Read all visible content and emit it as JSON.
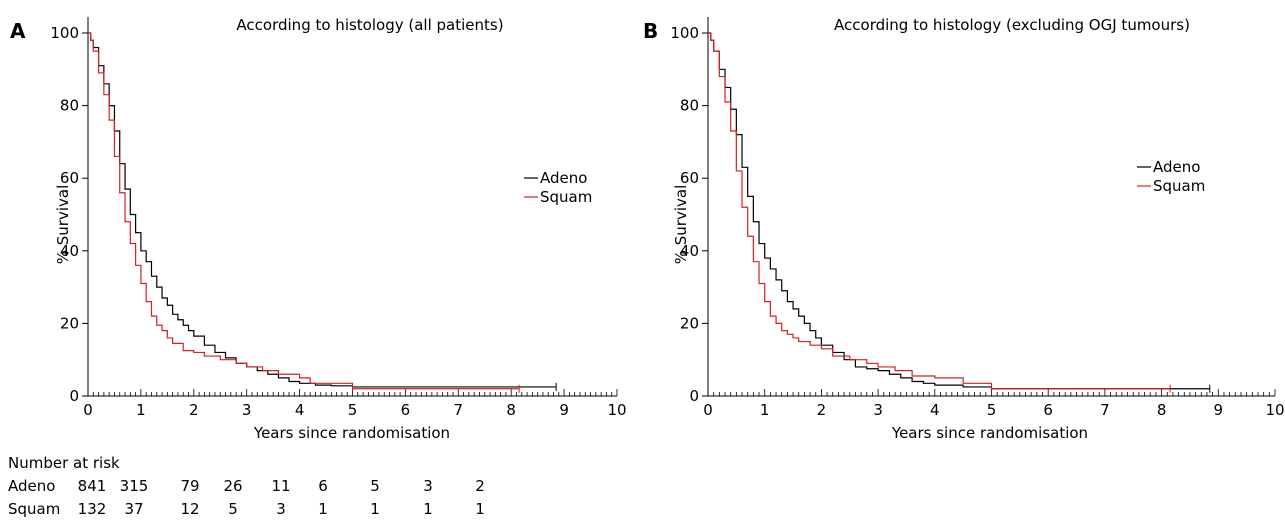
{
  "chart_data": [
    {
      "type": "line",
      "panel_label": "A",
      "title": "According to histology (all patients)",
      "xlabel": "Years since randomisation",
      "ylabel": "% Survival",
      "xlim": [
        0,
        10
      ],
      "ylim": [
        0,
        100
      ],
      "x_ticks": [
        0,
        1,
        2,
        3,
        4,
        5,
        6,
        7,
        8,
        9,
        10
      ],
      "y_ticks": [
        0,
        20,
        40,
        60,
        80,
        100
      ],
      "grid": false,
      "legend": "right-middle",
      "series": [
        {
          "name": "Adeno",
          "color": "#000000",
          "x": [
            0,
            0.05,
            0.1,
            0.2,
            0.3,
            0.4,
            0.5,
            0.6,
            0.7,
            0.8,
            0.9,
            1.0,
            1.1,
            1.2,
            1.3,
            1.4,
            1.5,
            1.6,
            1.7,
            1.8,
            1.9,
            2.0,
            2.2,
            2.4,
            2.6,
            2.8,
            3.0,
            3.2,
            3.4,
            3.6,
            3.8,
            4.0,
            4.3,
            4.6,
            5.0,
            5.5,
            6.0,
            7.0,
            8.0,
            8.85
          ],
          "y": [
            100,
            98,
            96,
            91,
            86,
            80,
            73,
            64,
            57,
            50,
            45,
            40,
            37,
            33,
            30,
            27,
            25,
            22.5,
            21,
            19.5,
            18,
            16.5,
            14,
            12,
            10.5,
            9,
            8,
            7,
            6,
            5,
            4,
            3.5,
            3,
            2.8,
            2.5,
            2.5,
            2.5,
            2.5,
            2.5,
            2.5
          ]
        },
        {
          "name": "Squam",
          "color": "#d42020",
          "x": [
            0,
            0.05,
            0.1,
            0.2,
            0.3,
            0.4,
            0.5,
            0.6,
            0.7,
            0.8,
            0.9,
            1.0,
            1.1,
            1.2,
            1.3,
            1.4,
            1.5,
            1.6,
            1.8,
            2.0,
            2.2,
            2.5,
            2.8,
            3.0,
            3.3,
            3.6,
            4.0,
            4.2,
            4.5,
            5.0,
            5.5,
            6.0,
            7.0,
            8.0,
            8.15
          ],
          "y": [
            100,
            98,
            95,
            89,
            83,
            76,
            66,
            56,
            48,
            42,
            36,
            31,
            26,
            22,
            19.5,
            18,
            16,
            14.5,
            12.5,
            12,
            11,
            10,
            9,
            8,
            7,
            6,
            5,
            3.5,
            3.5,
            2,
            2,
            2,
            2,
            2,
            2
          ]
        }
      ]
    },
    {
      "type": "line",
      "panel_label": "B",
      "title": "According to histology (excluding OGJ tumours)",
      "xlabel": "Years since randomisation",
      "ylabel": "% Survival",
      "xlim": [
        0,
        10
      ],
      "ylim": [
        0,
        100
      ],
      "x_ticks": [
        0,
        1,
        2,
        3,
        4,
        5,
        6,
        7,
        8,
        9,
        10
      ],
      "y_ticks": [
        0,
        20,
        40,
        60,
        80,
        100
      ],
      "grid": false,
      "legend": "right-middle",
      "series": [
        {
          "name": "Adeno",
          "color": "#000000",
          "x": [
            0,
            0.05,
            0.1,
            0.2,
            0.3,
            0.4,
            0.5,
            0.6,
            0.7,
            0.8,
            0.9,
            1.0,
            1.1,
            1.2,
            1.3,
            1.4,
            1.5,
            1.6,
            1.7,
            1.8,
            1.9,
            2.0,
            2.2,
            2.4,
            2.6,
            2.8,
            3.0,
            3.2,
            3.4,
            3.6,
            3.8,
            4.0,
            4.5,
            5.0,
            5.5,
            6.0,
            7.0,
            8.0,
            8.85
          ],
          "y": [
            100,
            98,
            95,
            90,
            85,
            79,
            72,
            63,
            55,
            48,
            42,
            38,
            35,
            32,
            29,
            26,
            24,
            22,
            20,
            18,
            16,
            14,
            12,
            10,
            8,
            7.5,
            7,
            6,
            5,
            4,
            3.5,
            3,
            2.5,
            2,
            2,
            2,
            2,
            2,
            2
          ]
        },
        {
          "name": "Squam",
          "color": "#d42020",
          "x": [
            0,
            0.05,
            0.1,
            0.2,
            0.3,
            0.4,
            0.5,
            0.6,
            0.7,
            0.8,
            0.9,
            1.0,
            1.1,
            1.2,
            1.3,
            1.4,
            1.5,
            1.6,
            1.8,
            2.0,
            2.2,
            2.5,
            2.8,
            3.0,
            3.3,
            3.6,
            4.0,
            4.5,
            5.0,
            5.5,
            6.0,
            7.0,
            8.0,
            8.15
          ],
          "y": [
            100,
            98,
            95,
            88,
            81,
            73,
            62,
            52,
            44,
            37,
            31,
            26,
            22,
            20,
            18,
            17,
            16,
            15,
            14,
            13,
            11,
            10,
            9,
            8,
            7,
            5.5,
            5,
            3.5,
            2,
            2,
            2,
            2,
            2,
            2
          ]
        }
      ]
    }
  ],
  "risk_table": {
    "title": "Number at risk",
    "rows": [
      {
        "label": "Adeno",
        "values": [
          "841",
          "315",
          "79",
          "26",
          "11",
          "6",
          "5",
          "3",
          "2"
        ]
      },
      {
        "label": "Squam",
        "values": [
          "132",
          "37",
          "12",
          "5",
          "3",
          "1",
          "1",
          "1",
          "1"
        ]
      }
    ]
  }
}
